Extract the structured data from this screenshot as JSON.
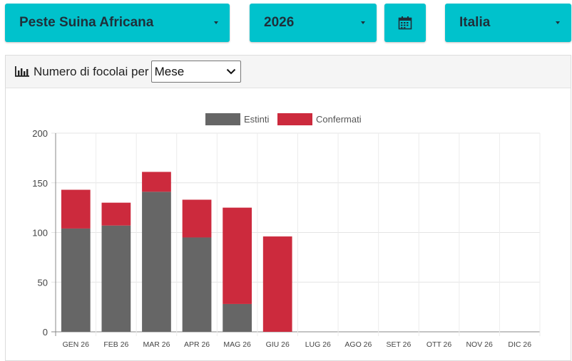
{
  "filters": {
    "disease": "Peste Suina Africana",
    "year": "2026",
    "country": "Italia",
    "calendar_icon": "calendar-icon"
  },
  "panel": {
    "title": "Numero di focolai per",
    "chart_icon": "bar-chart-icon",
    "period_select": "Mese"
  },
  "chart_data": {
    "type": "bar",
    "stacked": true,
    "categories": [
      "GEN 26",
      "FEB 26",
      "MAR 26",
      "APR 26",
      "MAG 26",
      "GIU 26",
      "LUG 26",
      "AGO 26",
      "SET 26",
      "OTT 26",
      "NOV 26",
      "DIC 26"
    ],
    "series": [
      {
        "name": "Estinti",
        "color": "#666666",
        "values": [
          104,
          107,
          141,
          95,
          28,
          0,
          0,
          0,
          0,
          0,
          0,
          0
        ]
      },
      {
        "name": "Confermati",
        "color": "#cc2a3d",
        "values": [
          39,
          23,
          20,
          38,
          97,
          96,
          0,
          0,
          0,
          0,
          0,
          0
        ]
      }
    ],
    "ylim": [
      0,
      200
    ],
    "yticks": [
      0,
      50,
      100,
      150,
      200
    ],
    "grid": true,
    "legend": "top-center"
  }
}
